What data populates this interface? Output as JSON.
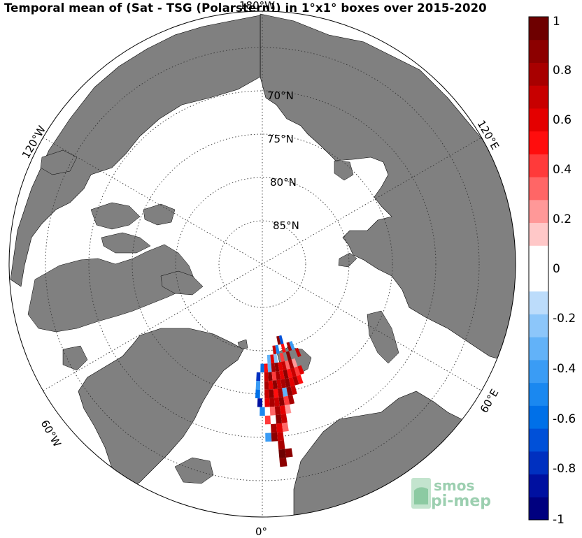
{
  "title": "Temporal mean of (Sat - TSG (Polarstern)) in 1°x1° boxes over 2015-2020",
  "map": {
    "projection": "north-polar-stereographic",
    "latitude_labels": [
      "70°N",
      "75°N",
      "80°N",
      "85°N"
    ],
    "longitude_labels": [
      "180°W",
      "120°W",
      "120°E",
      "60°W",
      "60°E",
      "0°"
    ],
    "land_color": "#808080",
    "ocean_color": "#ffffff"
  },
  "colorbar": {
    "ticks": [
      "1",
      "0.8",
      "0.6",
      "0.4",
      "0.2",
      "0",
      "-0.2",
      "-0.4",
      "-0.6",
      "-0.8",
      "-1"
    ],
    "range": [
      -1,
      1
    ],
    "colors": [
      "#00007f",
      "#0010a0",
      "#0030c0",
      "#0050d8",
      "#0070e8",
      "#1a88f0",
      "#3a9cf5",
      "#62b2f8",
      "#8cc6fa",
      "#bcdcfb",
      "#ffffff",
      "#ffffff",
      "#ffc8c8",
      "#ff9898",
      "#ff6666",
      "#ff3a3a",
      "#ff0d0d",
      "#e40000",
      "#c80000",
      "#a80000",
      "#8c0000",
      "#6e0000"
    ]
  },
  "logo": {
    "line1": "smos",
    "line2": "pi-mep"
  },
  "chart_data": {
    "type": "heatmap",
    "title": "Temporal mean of (Sat - TSG (Polarstern)) in 1°x1° boxes over 2015-2020",
    "value_range": [
      -1,
      1
    ],
    "cells": [
      {
        "lat": 81,
        "lon": 12,
        "value": 0.9
      },
      {
        "lat": 81,
        "lon": 14,
        "value": -0.7
      },
      {
        "lat": 80,
        "lon": 8,
        "value": 0.7
      },
      {
        "lat": 80,
        "lon": 10,
        "value": -0.5
      },
      {
        "lat": 80,
        "lon": 14,
        "value": 0.5
      },
      {
        "lat": 80,
        "lon": 18,
        "value": 0.8
      },
      {
        "lat": 80,
        "lon": 20,
        "value": -0.4
      },
      {
        "lat": 79,
        "lon": 4,
        "value": -0.3
      },
      {
        "lat": 79,
        "lon": 6,
        "value": 0.6
      },
      {
        "lat": 79,
        "lon": 8,
        "value": -0.2
      },
      {
        "lat": 79,
        "lon": 12,
        "value": 0.4
      },
      {
        "lat": 79,
        "lon": 16,
        "value": 0.9
      },
      {
        "lat": 79,
        "lon": 22,
        "value": 0.7
      },
      {
        "lat": 78,
        "lon": 0,
        "value": -0.6
      },
      {
        "lat": 78,
        "lon": 2,
        "value": 0.5
      },
      {
        "lat": 78,
        "lon": 4,
        "value": -0.3
      },
      {
        "lat": 78,
        "lon": 6,
        "value": 0.8
      },
      {
        "lat": 78,
        "lon": 8,
        "value": 0.9
      },
      {
        "lat": 78,
        "lon": 10,
        "value": 0.6
      },
      {
        "lat": 78,
        "lon": 12,
        "value": 0.7
      },
      {
        "lat": 78,
        "lon": 14,
        "value": 0.3
      },
      {
        "lat": 78,
        "lon": 16,
        "value": 0.8
      },
      {
        "lat": 78,
        "lon": 18,
        "value": 0.2
      },
      {
        "lat": 77,
        "lon": -2,
        "value": -0.8
      },
      {
        "lat": 77,
        "lon": 2,
        "value": 0.7
      },
      {
        "lat": 77,
        "lon": 4,
        "value": 0.9
      },
      {
        "lat": 77,
        "lon": 6,
        "value": 0.4
      },
      {
        "lat": 77,
        "lon": 8,
        "value": 0.8
      },
      {
        "lat": 77,
        "lon": 10,
        "value": 0.6
      },
      {
        "lat": 77,
        "lon": 12,
        "value": 0.9
      },
      {
        "lat": 77,
        "lon": 14,
        "value": 0.5
      },
      {
        "lat": 77,
        "lon": 16,
        "value": 0.7
      },
      {
        "lat": 77,
        "lon": 18,
        "value": 0.4
      },
      {
        "lat": 77,
        "lon": 20,
        "value": 0.6
      },
      {
        "lat": 76,
        "lon": -2,
        "value": -0.4
      },
      {
        "lat": 76,
        "lon": 2,
        "value": 0.8
      },
      {
        "lat": 76,
        "lon": 4,
        "value": 0.6
      },
      {
        "lat": 76,
        "lon": 6,
        "value": 0.9
      },
      {
        "lat": 76,
        "lon": 8,
        "value": 0.7
      },
      {
        "lat": 76,
        "lon": 10,
        "value": 0.8
      },
      {
        "lat": 76,
        "lon": 12,
        "value": 0.9
      },
      {
        "lat": 76,
        "lon": 14,
        "value": 0.6
      },
      {
        "lat": 76,
        "lon": 16,
        "value": 0.8
      },
      {
        "lat": 76,
        "lon": 18,
        "value": 0.5
      },
      {
        "lat": 75,
        "lon": -2,
        "value": -0.6
      },
      {
        "lat": 75,
        "lon": 2,
        "value": 0.7
      },
      {
        "lat": 75,
        "lon": 4,
        "value": 0.9
      },
      {
        "lat": 75,
        "lon": 6,
        "value": 0.5
      },
      {
        "lat": 75,
        "lon": 8,
        "value": 0.8
      },
      {
        "lat": 75,
        "lon": 10,
        "value": -0.3
      },
      {
        "lat": 75,
        "lon": 12,
        "value": 0.9
      },
      {
        "lat": 75,
        "lon": 14,
        "value": 0.7
      },
      {
        "lat": 74,
        "lon": -1,
        "value": -0.9
      },
      {
        "lat": 74,
        "lon": 2,
        "value": 0.6
      },
      {
        "lat": 74,
        "lon": 4,
        "value": 0.8
      },
      {
        "lat": 74,
        "lon": 6,
        "value": 0.7
      },
      {
        "lat": 74,
        "lon": 8,
        "value": 0.9
      },
      {
        "lat": 74,
        "lon": 10,
        "value": 0.4
      },
      {
        "lat": 74,
        "lon": 12,
        "value": 0.8
      },
      {
        "lat": 73,
        "lon": 0,
        "value": -0.5
      },
      {
        "lat": 73,
        "lon": 4,
        "value": 0.3
      },
      {
        "lat": 73,
        "lon": 6,
        "value": 0.8
      },
      {
        "lat": 73,
        "lon": 8,
        "value": 0.6
      },
      {
        "lat": 73,
        "lon": 10,
        "value": 0.2
      },
      {
        "lat": 72,
        "lon": 2,
        "value": 0.4
      },
      {
        "lat": 72,
        "lon": 6,
        "value": 0.9
      },
      {
        "lat": 72,
        "lon": 8,
        "value": 0.7
      },
      {
        "lat": 71,
        "lon": 4,
        "value": 0.8
      },
      {
        "lat": 71,
        "lon": 6,
        "value": 0.6
      },
      {
        "lat": 71,
        "lon": 8,
        "value": 0.3
      },
      {
        "lat": 70,
        "lon": 2,
        "value": -0.4
      },
      {
        "lat": 70,
        "lon": 4,
        "value": 0.9
      },
      {
        "lat": 70,
        "lon": 6,
        "value": 0.7
      },
      {
        "lat": 69,
        "lon": 6,
        "value": 0.8
      },
      {
        "lat": 68,
        "lon": 6,
        "value": 0.95
      },
      {
        "lat": 68,
        "lon": 8,
        "value": 0.9
      },
      {
        "lat": 67,
        "lon": 6,
        "value": 0.9
      }
    ]
  }
}
